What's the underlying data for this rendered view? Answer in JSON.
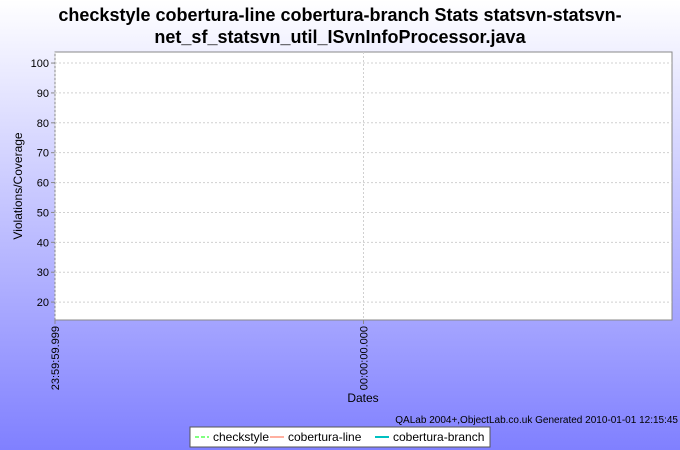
{
  "chart_data": {
    "type": "line",
    "title": [
      "checkstyle cobertura-line cobertura-branch  Stats statsvn-statsvn-",
      "net_sf_statsvn_util_ISvnInfoProcessor.java"
    ],
    "subtitle": "QALab 2004+,ObjectLab.co.uk Generated 2010-01-01 12:15:45",
    "x_label": "Dates",
    "y_label": "Violations/Coverage",
    "x": [],
    "series": [
      {
        "name": "checkstyle",
        "color": "#80ff80",
        "dash": true,
        "values": []
      },
      {
        "name": "cobertura-line",
        "color": "#ffb0a0",
        "values": []
      },
      {
        "name": "cobertura-branch",
        "color": "#00c0c0",
        "values": []
      }
    ],
    "xlim": [
      -1,
      1
    ],
    "xticks": [
      {
        "value": -1,
        "label": "23:59:59.999"
      },
      {
        "value": 0,
        "label": "00:00:00.000"
      }
    ],
    "ylim": [
      14,
      103.7
    ],
    "yticks": [
      20,
      30,
      40,
      50,
      60,
      70,
      80,
      90,
      100
    ],
    "grid": true,
    "legend": "bottom"
  }
}
